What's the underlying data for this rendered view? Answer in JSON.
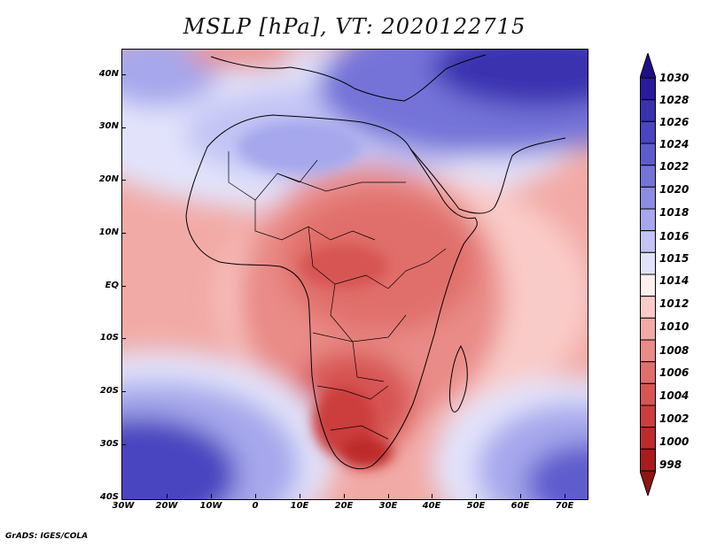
{
  "title": "MSLP [hPa], VT: 2020122715",
  "y_axis": {
    "labels": [
      "40N",
      "30N",
      "20N",
      "10N",
      "EQ",
      "10S",
      "20S",
      "30S",
      "40S"
    ],
    "lat_values": [
      40,
      30,
      20,
      10,
      0,
      -10,
      -20,
      -30,
      -40
    ]
  },
  "x_axis": {
    "labels": [
      "30W",
      "20W",
      "10W",
      "0",
      "10E",
      "20E",
      "30E",
      "40E",
      "50E",
      "60E",
      "70E"
    ],
    "lon_values": [
      -30,
      -20,
      -10,
      0,
      10,
      20,
      30,
      40,
      50,
      60,
      70
    ]
  },
  "colorbar": {
    "labels": [
      "1030",
      "1028",
      "1026",
      "1024",
      "1022",
      "1020",
      "1018",
      "1016",
      "1015",
      "1014",
      "1012",
      "1010",
      "1008",
      "1006",
      "1004",
      "1002",
      "1000",
      "998"
    ],
    "colors": [
      "#2b1a9c",
      "#3a30b0",
      "#4a45c0",
      "#5e5ccd",
      "#7473d8",
      "#8c8ce2",
      "#a6a7ec",
      "#c3c4f4",
      "#e2e3fb",
      "#fff0ef",
      "#f9cbc8",
      "#f2aaa6",
      "#e98b87",
      "#e06e6b",
      "#d75553",
      "#cc3e3d",
      "#be2b2b",
      "#a81c1c"
    ],
    "top_arrow_color": "#1e0f88",
    "bottom_arrow_color": "#901414"
  },
  "credit": "GrADS: IGES/COLA"
}
